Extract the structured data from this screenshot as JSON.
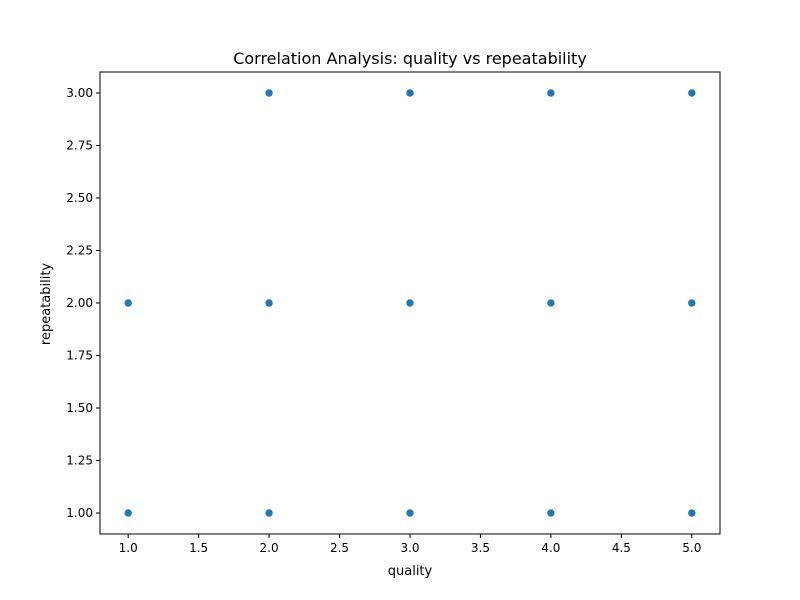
{
  "chart_data": {
    "type": "scatter",
    "title": "Correlation Analysis: quality vs repeatability",
    "xlabel": "quality",
    "ylabel": "repeatability",
    "xlim": [
      0.8,
      5.2
    ],
    "ylim": [
      0.9,
      3.1
    ],
    "x_ticks": [
      1.0,
      1.5,
      2.0,
      2.5,
      3.0,
      3.5,
      4.0,
      4.5,
      5.0
    ],
    "x_tick_labels": [
      "1.0",
      "1.5",
      "2.0",
      "2.5",
      "3.0",
      "3.5",
      "4.0",
      "4.5",
      "5.0"
    ],
    "y_ticks": [
      1.0,
      1.25,
      1.5,
      1.75,
      2.0,
      2.25,
      2.5,
      2.75,
      3.0
    ],
    "y_tick_labels": [
      "1.00",
      "1.25",
      "1.50",
      "1.75",
      "2.00",
      "2.25",
      "2.50",
      "2.75",
      "3.00"
    ],
    "grid": false,
    "legend": "none",
    "marker_color": "#1f77b4",
    "points": [
      {
        "x": 1,
        "y": 1
      },
      {
        "x": 1,
        "y": 2
      },
      {
        "x": 2,
        "y": 1
      },
      {
        "x": 2,
        "y": 2
      },
      {
        "x": 2,
        "y": 3
      },
      {
        "x": 3,
        "y": 1
      },
      {
        "x": 3,
        "y": 2
      },
      {
        "x": 3,
        "y": 3
      },
      {
        "x": 4,
        "y": 1
      },
      {
        "x": 4,
        "y": 2
      },
      {
        "x": 4,
        "y": 3
      },
      {
        "x": 5,
        "y": 1
      },
      {
        "x": 5,
        "y": 2
      },
      {
        "x": 5,
        "y": 3
      }
    ]
  }
}
